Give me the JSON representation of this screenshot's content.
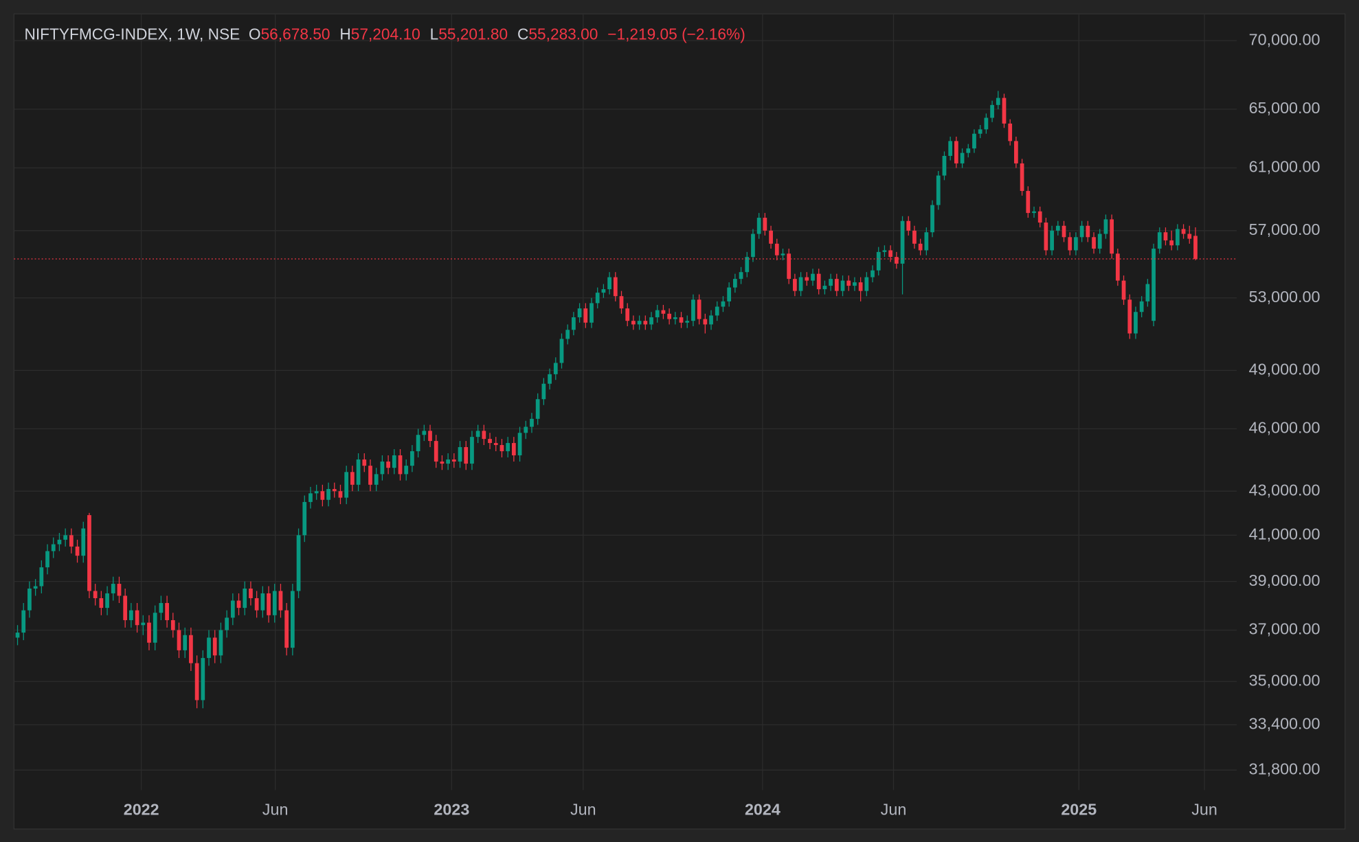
{
  "chart_data": {
    "type": "candlestick",
    "title": "NIFTYFMCG-INDEX, 1W, NSE",
    "ohlc_legend": [
      {
        "label": "O",
        "value": "56,678.50"
      },
      {
        "label": "H",
        "value": "57,204.10"
      },
      {
        "label": "L",
        "value": "55,201.80"
      },
      {
        "label": "C",
        "value": "55,283.00"
      }
    ],
    "change": "−1,219.05 (−2.16%)",
    "up_color": "#089981",
    "down_color": "#f23645",
    "log_scale": true,
    "grid": true,
    "ylim": [
      31122,
      71929
    ],
    "yticks": [
      {
        "value": 70000,
        "label": "70,000.00"
      },
      {
        "value": 65000,
        "label": "65,000.00"
      },
      {
        "value": 61000,
        "label": "61,000.00"
      },
      {
        "value": 57000,
        "label": "57,000.00"
      },
      {
        "value": 53000,
        "label": "53,000.00"
      },
      {
        "value": 49000,
        "label": "49,000.00"
      },
      {
        "value": 46000,
        "label": "46,000.00"
      },
      {
        "value": 43000,
        "label": "43,000.00"
      },
      {
        "value": 41000,
        "label": "41,000.00"
      },
      {
        "value": 39000,
        "label": "39,000.00"
      },
      {
        "value": 37000,
        "label": "37,000.00"
      },
      {
        "value": 35000,
        "label": "35,000.00"
      },
      {
        "value": 33400,
        "label": "33,400.00"
      },
      {
        "value": 31800,
        "label": "31,800.00"
      }
    ],
    "xlim": [
      -0.6,
      203.9
    ],
    "xticks": [
      {
        "value": 20.7,
        "label": "2022"
      },
      {
        "value": 43.1,
        "label": "Jun"
      },
      {
        "value": 72.6,
        "label": "2023"
      },
      {
        "value": 94.6,
        "label": "Jun"
      },
      {
        "value": 124.6,
        "label": "2024"
      },
      {
        "value": 146.5,
        "label": "Jun"
      },
      {
        "value": 177.5,
        "label": "2025"
      },
      {
        "value": 198.5,
        "label": "Jun"
      }
    ],
    "ohlc": [
      [
        36700,
        37200,
        36400,
        36900
      ],
      [
        36900,
        38100,
        36600,
        37800
      ],
      [
        37800,
        39000,
        37500,
        38700
      ],
      [
        38700,
        39100,
        38400,
        38800
      ],
      [
        38800,
        39900,
        38500,
        39600
      ],
      [
        39600,
        40600,
        39300,
        40300
      ],
      [
        40300,
        40900,
        40000,
        40600
      ],
      [
        40600,
        41100,
        40300,
        40800
      ],
      [
        40800,
        41300,
        40500,
        41000
      ],
      [
        41000,
        41300,
        40200,
        40500
      ],
      [
        40500,
        40800,
        39800,
        40100
      ],
      [
        40100,
        41600,
        39800,
        41300
      ],
      [
        41900,
        42000,
        38300,
        38600
      ],
      [
        38600,
        38900,
        38000,
        38300
      ],
      [
        38300,
        38600,
        37600,
        37900
      ],
      [
        37900,
        38800,
        37600,
        38500
      ],
      [
        38500,
        39200,
        38200,
        38900
      ],
      [
        38900,
        39200,
        38100,
        38400
      ],
      [
        38400,
        38700,
        37100,
        37400
      ],
      [
        37400,
        38100,
        37100,
        37800
      ],
      [
        37800,
        38100,
        36900,
        37200
      ],
      [
        37200,
        37600,
        36800,
        37300
      ],
      [
        37300,
        37600,
        36200,
        36500
      ],
      [
        36500,
        38000,
        36200,
        37700
      ],
      [
        37700,
        38400,
        37400,
        38100
      ],
      [
        38100,
        38400,
        37100,
        37400
      ],
      [
        37400,
        37700,
        36700,
        37000
      ],
      [
        37000,
        37300,
        35900,
        36200
      ],
      [
        36200,
        37100,
        35900,
        36800
      ],
      [
        36800,
        37100,
        35400,
        35700
      ],
      [
        35700,
        36000,
        34000,
        34300
      ],
      [
        34300,
        36200,
        34000,
        35900
      ],
      [
        35900,
        37000,
        35600,
        36700
      ],
      [
        36700,
        37000,
        35700,
        36000
      ],
      [
        36000,
        37300,
        35700,
        37000
      ],
      [
        37000,
        37800,
        36700,
        37500
      ],
      [
        37500,
        38500,
        37200,
        38200
      ],
      [
        38200,
        38500,
        37600,
        37900
      ],
      [
        37900,
        39000,
        37600,
        38700
      ],
      [
        38700,
        39000,
        38000,
        38300
      ],
      [
        38300,
        38600,
        37500,
        37800
      ],
      [
        37800,
        38800,
        37500,
        38500
      ],
      [
        38500,
        38800,
        37300,
        37600
      ],
      [
        37600,
        38900,
        37300,
        38600
      ],
      [
        38600,
        38900,
        37500,
        37800
      ],
      [
        37800,
        38100,
        36000,
        36300
      ],
      [
        36300,
        38900,
        36000,
        38600
      ],
      [
        38600,
        41300,
        38300,
        41000
      ],
      [
        41000,
        42800,
        40700,
        42500
      ],
      [
        42500,
        43200,
        42200,
        42900
      ],
      [
        42900,
        43300,
        42600,
        43000
      ],
      [
        43000,
        43300,
        42300,
        42600
      ],
      [
        42600,
        43400,
        42300,
        43100
      ],
      [
        43100,
        43400,
        42700,
        43000
      ],
      [
        43000,
        43300,
        42400,
        42700
      ],
      [
        42700,
        44200,
        42400,
        43900
      ],
      [
        43900,
        44200,
        43000,
        43300
      ],
      [
        43300,
        44800,
        43000,
        44500
      ],
      [
        44500,
        44800,
        43900,
        44200
      ],
      [
        44200,
        44500,
        43000,
        43300
      ],
      [
        43300,
        44100,
        43000,
        43800
      ],
      [
        43800,
        44700,
        43500,
        44400
      ],
      [
        44400,
        44700,
        43800,
        44100
      ],
      [
        44100,
        45000,
        43800,
        44700
      ],
      [
        44700,
        45000,
        43500,
        43800
      ],
      [
        43800,
        44500,
        43500,
        44200
      ],
      [
        44200,
        45200,
        43900,
        44900
      ],
      [
        44900,
        46000,
        44600,
        45700
      ],
      [
        45700,
        46200,
        45400,
        45900
      ],
      [
        45900,
        46200,
        45100,
        45400
      ],
      [
        45400,
        45700,
        44100,
        44400
      ],
      [
        44400,
        44700,
        44000,
        44300
      ],
      [
        44300,
        44800,
        44000,
        44500
      ],
      [
        44500,
        44800,
        44100,
        44400
      ],
      [
        44400,
        45400,
        44100,
        45100
      ],
      [
        45100,
        45400,
        44000,
        44300
      ],
      [
        44300,
        45900,
        44000,
        45600
      ],
      [
        45600,
        46200,
        45300,
        45900
      ],
      [
        45900,
        46200,
        45200,
        45500
      ],
      [
        45500,
        45800,
        45000,
        45300
      ],
      [
        45300,
        45600,
        44900,
        45200
      ],
      [
        45200,
        45500,
        44600,
        44900
      ],
      [
        44900,
        45600,
        44600,
        45300
      ],
      [
        45300,
        45600,
        44400,
        44700
      ],
      [
        44700,
        46100,
        44400,
        45800
      ],
      [
        45800,
        46400,
        45500,
        46100
      ],
      [
        46100,
        46800,
        45800,
        46500
      ],
      [
        46500,
        47800,
        46200,
        47500
      ],
      [
        47500,
        48600,
        47200,
        48300
      ],
      [
        48300,
        49100,
        48000,
        48800
      ],
      [
        48800,
        49700,
        48500,
        49400
      ],
      [
        49400,
        51000,
        49100,
        50700
      ],
      [
        50700,
        51500,
        50400,
        51200
      ],
      [
        51200,
        52200,
        50900,
        51900
      ],
      [
        51900,
        52700,
        51600,
        52400
      ],
      [
        52400,
        52700,
        51300,
        51600
      ],
      [
        51600,
        53000,
        51300,
        52700
      ],
      [
        52700,
        53600,
        52400,
        53300
      ],
      [
        53300,
        53800,
        53000,
        53500
      ],
      [
        53500,
        54500,
        53200,
        54200
      ],
      [
        54200,
        54500,
        52800,
        53100
      ],
      [
        53100,
        53400,
        52100,
        52400
      ],
      [
        52400,
        52700,
        51400,
        51700
      ],
      [
        51700,
        52000,
        51200,
        51500
      ],
      [
        51500,
        52000,
        51200,
        51700
      ],
      [
        51700,
        52000,
        51200,
        51500
      ],
      [
        51500,
        52200,
        51200,
        51900
      ],
      [
        51900,
        52600,
        51600,
        52300
      ],
      [
        52300,
        52600,
        51800,
        52100
      ],
      [
        52100,
        52400,
        51500,
        51800
      ],
      [
        51800,
        52200,
        51500,
        51900
      ],
      [
        51900,
        52200,
        51300,
        51600
      ],
      [
        51600,
        52000,
        51300,
        51700
      ],
      [
        51700,
        53200,
        51400,
        52900
      ],
      [
        52900,
        53200,
        51500,
        51800
      ],
      [
        51800,
        52100,
        51000,
        51500
      ],
      [
        51500,
        52300,
        51200,
        52000
      ],
      [
        52000,
        52800,
        51700,
        52500
      ],
      [
        52500,
        53100,
        52200,
        52800
      ],
      [
        52800,
        53900,
        52500,
        53600
      ],
      [
        53600,
        54400,
        53300,
        54100
      ],
      [
        54100,
        54800,
        53800,
        54500
      ],
      [
        54500,
        55700,
        54200,
        55400
      ],
      [
        55400,
        57100,
        55100,
        56800
      ],
      [
        56800,
        58100,
        56500,
        57800
      ],
      [
        57800,
        58100,
        56700,
        57000
      ],
      [
        57000,
        57300,
        55900,
        56200
      ],
      [
        56200,
        56500,
        55200,
        55500
      ],
      [
        55500,
        55900,
        55200,
        55600
      ],
      [
        55600,
        55900,
        53800,
        54100
      ],
      [
        54100,
        54400,
        53100,
        53400
      ],
      [
        53400,
        54500,
        53100,
        54200
      ],
      [
        54200,
        54500,
        53700,
        54000
      ],
      [
        54000,
        54700,
        53700,
        54400
      ],
      [
        54400,
        54700,
        53200,
        53500
      ],
      [
        53500,
        54000,
        53200,
        53700
      ],
      [
        53700,
        54400,
        53400,
        54100
      ],
      [
        54100,
        54400,
        53100,
        53400
      ],
      [
        53400,
        54300,
        53100,
        54000
      ],
      [
        54000,
        54300,
        53400,
        53700
      ],
      [
        53700,
        54200,
        53400,
        53900
      ],
      [
        53900,
        54200,
        52800,
        53400
      ],
      [
        53400,
        54500,
        53100,
        54200
      ],
      [
        54200,
        54900,
        53900,
        54600
      ],
      [
        54600,
        56000,
        54300,
        55700
      ],
      [
        55700,
        56100,
        55400,
        55800
      ],
      [
        55800,
        56100,
        55100,
        55400
      ],
      [
        55400,
        55700,
        54700,
        55000
      ],
      [
        55000,
        57900,
        53200,
        57600
      ],
      [
        57600,
        57900,
        56700,
        57000
      ],
      [
        57000,
        57300,
        55900,
        56200
      ],
      [
        56200,
        56500,
        55500,
        55800
      ],
      [
        55800,
        57200,
        55500,
        56900
      ],
      [
        56900,
        58900,
        56600,
        58600
      ],
      [
        58600,
        60800,
        58300,
        60500
      ],
      [
        60500,
        62100,
        60200,
        61800
      ],
      [
        61800,
        63100,
        61500,
        62800
      ],
      [
        62800,
        63100,
        61000,
        61300
      ],
      [
        61300,
        62300,
        61000,
        62000
      ],
      [
        62000,
        62600,
        61700,
        62300
      ],
      [
        62300,
        63600,
        62000,
        63300
      ],
      [
        63300,
        63900,
        63000,
        63600
      ],
      [
        63600,
        64700,
        63300,
        64400
      ],
      [
        64400,
        65600,
        64100,
        65300
      ],
      [
        65300,
        66300,
        65000,
        65800
      ],
      [
        65800,
        66100,
        63700,
        64000
      ],
      [
        64000,
        64300,
        62500,
        62800
      ],
      [
        62800,
        63100,
        61000,
        61300
      ],
      [
        61300,
        61600,
        59200,
        59500
      ],
      [
        59500,
        59800,
        57800,
        58100
      ],
      [
        58100,
        58500,
        57800,
        58200
      ],
      [
        58200,
        58500,
        57200,
        57500
      ],
      [
        57500,
        57800,
        55500,
        55800
      ],
      [
        55800,
        57300,
        55500,
        57000
      ],
      [
        57000,
        57600,
        56700,
        57300
      ],
      [
        57300,
        57600,
        56300,
        56600
      ],
      [
        56600,
        56900,
        55500,
        55800
      ],
      [
        55800,
        56900,
        55500,
        56600
      ],
      [
        56600,
        57600,
        56300,
        57300
      ],
      [
        57300,
        57600,
        56300,
        56600
      ],
      [
        56600,
        56900,
        55600,
        55900
      ],
      [
        55900,
        57100,
        55600,
        56800
      ],
      [
        56800,
        58000,
        56500,
        57700
      ],
      [
        57700,
        58000,
        55300,
        55600
      ],
      [
        55600,
        55900,
        53700,
        54000
      ],
      [
        54000,
        54300,
        52600,
        52900
      ],
      [
        52900,
        53200,
        50700,
        51000
      ],
      [
        51000,
        52500,
        50700,
        52200
      ],
      [
        52200,
        53100,
        51900,
        52800
      ],
      [
        52800,
        54100,
        52500,
        53800
      ],
      [
        51700,
        56200,
        51400,
        55900
      ],
      [
        55900,
        57200,
        55600,
        56900
      ],
      [
        56900,
        57200,
        56100,
        56400
      ],
      [
        56400,
        57000,
        55800,
        56100
      ],
      [
        56100,
        57400,
        55800,
        57100
      ],
      [
        57100,
        57400,
        56500,
        56800
      ],
      [
        56800,
        57300,
        56200,
        56502.05
      ],
      [
        56678.5,
        57204.1,
        55201.8,
        55283
      ]
    ]
  }
}
